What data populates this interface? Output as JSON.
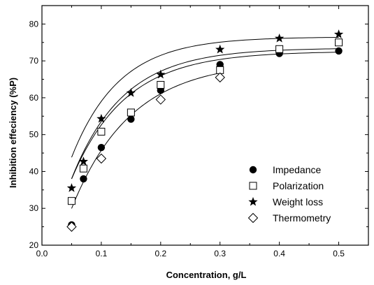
{
  "chart_data": {
    "type": "scatter",
    "xlabel": "Concentration, g/L",
    "ylabel": "Inhibition effeciency (%P)",
    "xlim": [
      0.0,
      0.55
    ],
    "ylim": [
      20,
      85
    ],
    "x_ticks": [
      "0.0",
      "0.1",
      "0.2",
      "0.3",
      "0.4",
      "0.5"
    ],
    "y_ticks": [
      "20",
      "30",
      "40",
      "50",
      "60",
      "70",
      "80"
    ],
    "grid": false,
    "legend_position": "bottom-right",
    "series": [
      {
        "name": "Impedance",
        "marker": "filled-circle",
        "x": [
          0.05,
          0.07,
          0.1,
          0.15,
          0.2,
          0.3,
          0.4,
          0.5
        ],
        "y": [
          25.5,
          38.0,
          46.5,
          54.2,
          62.0,
          69.0,
          72.0,
          72.7
        ],
        "fit": {
          "a": 72.6,
          "b": 60.0,
          "k": 11.0
        }
      },
      {
        "name": "Polarization",
        "marker": "open-square",
        "x": [
          0.05,
          0.07,
          0.1,
          0.15,
          0.2,
          0.3,
          0.4,
          0.5
        ],
        "y": [
          32.0,
          40.8,
          50.8,
          56.0,
          63.5,
          67.5,
          73.2,
          75.0
        ],
        "fit": {
          "a": 73.5,
          "b": 63.0,
          "k": 11.5
        }
      },
      {
        "name": "Weight loss",
        "marker": "filled-star",
        "x": [
          0.05,
          0.07,
          0.1,
          0.15,
          0.2,
          0.3,
          0.4,
          0.5
        ],
        "y": [
          35.5,
          42.7,
          54.3,
          61.3,
          66.3,
          73.1,
          76.1,
          77.2
        ],
        "fit": {
          "a": 76.5,
          "b": 61.0,
          "k": 12.5
        }
      },
      {
        "name": "Thermometry",
        "marker": "open-diamond",
        "x": [
          0.05,
          0.1,
          0.2,
          0.3
        ],
        "y": [
          25.0,
          43.5,
          59.5,
          65.5
        ],
        "fit": {
          "a": 70.0,
          "b": 66.0,
          "k": 10.0
        },
        "fit_xmax": 0.3
      }
    ]
  }
}
